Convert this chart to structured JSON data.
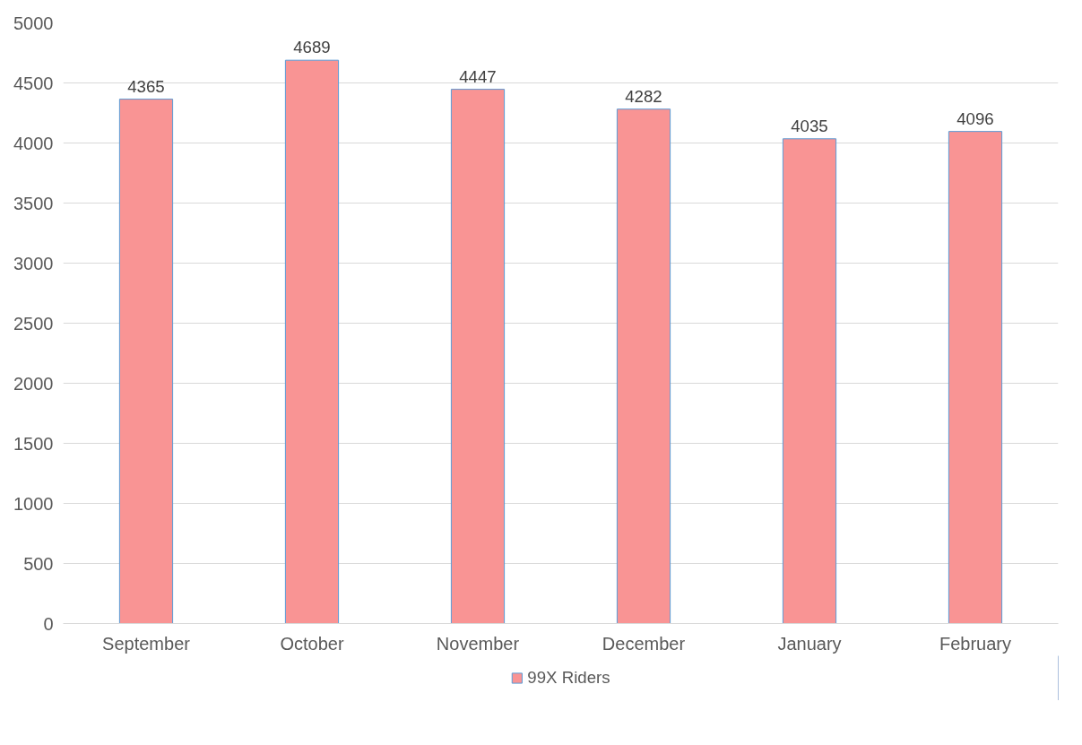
{
  "chart_data": {
    "type": "bar",
    "categories": [
      "September",
      "October",
      "November",
      "December",
      "January",
      "February"
    ],
    "series": [
      {
        "name": "99X Riders",
        "color": "#f99494",
        "values": [
          4365,
          4689,
          4447,
          4282,
          4035,
          4096
        ]
      }
    ],
    "ylim": [
      0,
      5000
    ],
    "yticks": [
      0,
      500,
      1000,
      1500,
      2000,
      2500,
      3000,
      3500,
      4000,
      4500,
      5000
    ],
    "grid": "y",
    "legend": "bottom",
    "data_labels": true
  }
}
